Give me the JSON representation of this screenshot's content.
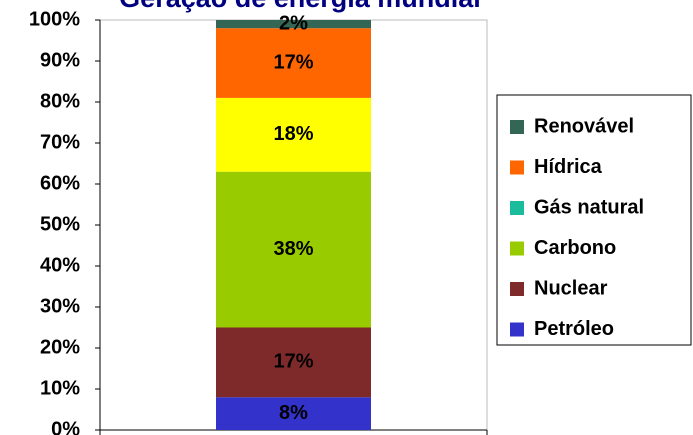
{
  "chart_data": {
    "type": "stacked_bar",
    "title": "Geração de energia mundial",
    "categories": [
      null
    ],
    "ylim": [
      0,
      100
    ],
    "yticks": [
      {
        "value": 0,
        "label": "0%"
      },
      {
        "value": 10,
        "label": "10%"
      },
      {
        "value": 20,
        "label": "20%"
      },
      {
        "value": 30,
        "label": "30%"
      },
      {
        "value": 40,
        "label": "40%"
      },
      {
        "value": 50,
        "label": "50%"
      },
      {
        "value": 60,
        "label": "60%"
      },
      {
        "value": 70,
        "label": "70%"
      },
      {
        "value": 80,
        "label": "80%"
      },
      {
        "value": 90,
        "label": "90%"
      },
      {
        "value": 100,
        "label": "100%"
      }
    ],
    "legend": "right",
    "series": [
      {
        "name": "Petróleo",
        "color": "#3333cc",
        "values": [
          8
        ],
        "value_labels": [
          "8%"
        ]
      },
      {
        "name": "Nuclear",
        "color": "#7f2a2a",
        "values": [
          17
        ],
        "value_labels": [
          "17%"
        ]
      },
      {
        "name": "Carbono",
        "color": "#99cc00",
        "values": [
          38
        ],
        "value_labels": [
          "38%"
        ]
      },
      {
        "name": "Gás natural",
        "color": "#ffff00",
        "legend_color": "#1abc9c",
        "values": [
          18
        ],
        "value_labels": [
          "18%"
        ]
      },
      {
        "name": "Hídrica",
        "color": "#ff6600",
        "values": [
          17
        ],
        "value_labels": [
          "17%"
        ]
      },
      {
        "name": "Renovável",
        "color": "#336655",
        "values": [
          2
        ],
        "value_labels": [
          "2%"
        ]
      }
    ]
  }
}
